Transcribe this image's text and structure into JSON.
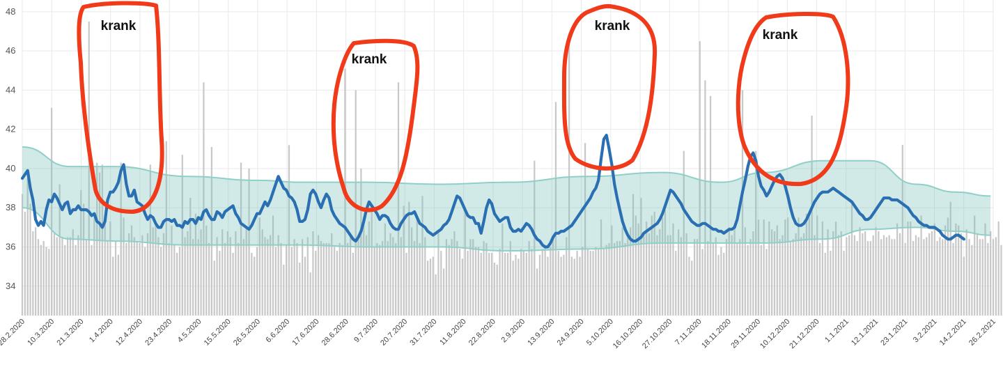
{
  "colors": {
    "bars": "#c8c8c8",
    "band_fill": "#7cc4bd",
    "band_stroke": "#8fcfc8",
    "line": "#2a6fb2",
    "annotation_circle": "#f03a1a",
    "annotation_text": "#111111",
    "grid": "#e9e9e9"
  },
  "chart_data": {
    "type": "bar+line+area",
    "ylim": [
      32.5,
      48.6
    ],
    "yticks": [
      34,
      36,
      38,
      40,
      42,
      44,
      46,
      48
    ],
    "grid": true,
    "xlim_days": [
      0,
      364
    ],
    "xtick_labels": [
      "28.2.2020",
      "10.3.2020",
      "21.3.2020",
      "1.4.2020",
      "12.4.2020",
      "23.4.2020",
      "4.5.2020",
      "15.5.2020",
      "26.5.2020",
      "6.6.2020",
      "17.6.2020",
      "28.6.2020",
      "9.7.2020",
      "20.7.2020",
      "31.7.2020",
      "11.8.2020",
      "22.8.2020",
      "2.9.2020",
      "13.9.2020",
      "24.9.2020",
      "5.10.2020",
      "16.10.2020",
      "27.10.2020",
      "7.11.2020",
      "18.11.2020",
      "29.11.2020",
      "10.12.2020",
      "21.12.2020",
      "1.1.2021",
      "12.1.2021",
      "23.1.2021",
      "3.2.2021",
      "14.2.2021",
      "26.2.2021"
    ],
    "series": [
      {
        "kind": "daily_bars",
        "values": [
          38.7,
          37.8,
          39.2,
          38.2,
          36.8,
          37,
          36.4,
          36.1,
          36.3,
          36,
          35.9,
          36.1,
          36.7,
          36.5,
          37.5,
          36.5,
          36.1,
          36.5,
          36.5,
          36.9,
          36.1,
          36.6,
          38.9,
          38.2,
          36.4,
          36.7,
          36.1,
          37.5,
          36.6,
          39.8,
          36.6,
          37.6,
          36.3,
          37.3,
          35.5,
          36.3,
          35.6,
          36.8,
          37.5,
          36.2,
          36.7,
          37.1,
          36.5,
          36.3,
          36.2,
          36.6,
          36,
          36.7,
          36.3,
          37,
          37.2,
          36.5,
          36,
          36.7,
          36.7,
          36.2,
          37.1,
          36.1,
          35.7,
          36,
          35.9,
          36.5,
          36.8,
          38.5,
          36.4,
          37.7,
          36.4,
          36.9,
          35.9,
          37.1,
          36.2,
          35.6,
          35.3,
          36.5,
          35.8,
          36.9,
          36.2,
          36.8,
          36.5,
          35.7,
          36.8,
          36.2,
          36.1,
          36.4,
          37,
          36.5,
          35.7,
          35.5,
          36,
          37.5,
          36.9,
          36.5,
          36.4,
          36.6,
          37.6,
          36,
          36.6,
          36.2,
          35.1,
          36.1,
          34.9,
          36,
          36.4,
          36.2,
          35.2,
          36.4,
          35.5,
          36.5,
          34.7,
          36.8,
          35.8,
          36.6,
          36.3,
          36.2,
          36.2,
          36.2,
          36.7,
          36,
          35.8,
          36.2,
          36.1,
          36.8,
          36.2,
          36.6,
          35.7,
          36.5,
          36.4,
          36.7,
          37.4,
          36.6,
          37.3,
          37.9,
          36,
          36.2,
          36.1,
          36.3,
          37.2,
          36.3,
          36.7,
          36.5,
          36.2,
          38.9,
          36.5,
          38.1,
          35.7,
          38.3,
          37,
          36.3,
          37.4,
          36.2,
          38.6,
          36.5,
          35.3,
          35.4,
          35.5,
          34.6,
          36.7,
          35.8,
          34.9,
          36.4,
          36.1,
          36.4,
          36.8,
          36.3,
          35.9,
          35.4,
          37.9,
          35.8,
          36.4,
          36.4,
          36,
          36,
          35.7,
          36.3,
          36.2,
          35.7,
          35.7,
          35.2,
          35.1,
          35.9,
          37.2,
          35.7,
          35.7,
          36.3,
          35.3,
          35.6,
          35.4,
          35.9,
          35.8,
          35.7,
          36.3,
          35.9,
          36,
          34.9,
          35.6,
          35.9,
          36.1,
          35.5,
          36,
          36.6,
          35.6,
          35.8,
          35.5,
          35.6,
          36.5,
          36.2,
          35.5,
          35.4,
          35.8,
          35.5,
          36,
          36.3,
          35.9,
          35.8,
          35.8,
          36,
          35.9,
          37.4,
          35.9,
          36.1,
          36.2,
          37.1,
          36.2,
          36.3,
          36.3,
          37,
          36.2,
          36.6,
          37,
          38.7,
          37.6,
          37.2,
          38.5,
          36.7,
          37.3,
          36.7,
          37.6,
          37.8,
          36.6,
          36.9,
          37.5,
          37.9,
          36.6,
          36.6,
          37.2,
          35.8,
          36.9,
          36.5,
          35.8,
          36.7,
          35.5,
          35.3,
          36.4,
          36.4,
          36.3,
          35.9,
          35.7,
          36.3,
          36.6,
          36.2,
          36.5,
          35.6,
          36,
          35.7,
          36.4,
          37,
          36.6,
          37.1,
          36.2,
          36.4,
          36.2,
          37,
          36.1,
          36.4,
          36.8,
          37.3,
          37.4,
          36.1,
          37.4,
          35.9,
          37.3,
          36.9,
          36.8,
          37.1,
          36.4,
          36.6,
          37.4,
          37.5,
          36.3,
          36.4,
          36.7,
          37.5,
          36.5,
          36.7,
          37.7,
          37.6,
          39.1,
          36.6,
          37.6,
          36.2,
          37.3,
          35.7,
          36.9,
          35.8,
          36.8,
          37.3,
          36.6,
          36.8,
          35.8,
          36.5,
          36.6,
          38.3,
          36.6,
          36.3,
          37,
          36.7,
          36.8,
          36.3,
          36.3,
          36.6,
          37,
          36.8,
          36.4,
          36.6,
          36.5,
          36.6,
          36.4,
          36.4,
          37.2,
          36.7,
          36.5,
          36.2,
          37.3,
          37.3,
          36.3,
          36.6,
          36.5,
          37.6,
          36.4,
          36.5,
          36.7,
          36.8,
          37.2,
          36.3,
          36.5,
          36.4,
          37.1,
          37.5,
          38.3,
          36.2,
          37.2,
          37.1,
          36.7,
          35.5,
          36.9,
          36.4,
          36.1,
          37.6,
          36.7,
          36.4,
          36.4,
          37.2,
          36.2,
          36.8,
          36.4,
          36.5,
          37.3,
          36.1,
          36.4,
          36.7,
          36.3,
          37.6,
          36.2,
          36.6,
          35.6,
          36.2,
          35.8,
          35.7,
          36.8,
          36.4,
          36.7,
          36.1,
          35.9,
          36,
          36.3,
          36.4
        ]
      },
      {
        "kind": "spike_bars",
        "values": [
          [
            2,
            39.5
          ],
          [
            11,
            43.1
          ],
          [
            14,
            39.2
          ],
          [
            25,
            47.5
          ],
          [
            28,
            40.3
          ],
          [
            30,
            40.2
          ],
          [
            37,
            40.3
          ],
          [
            48,
            40.2
          ],
          [
            54,
            41.4
          ],
          [
            60,
            40.7
          ],
          [
            68,
            44.4
          ],
          [
            71,
            41.1
          ],
          [
            82,
            40.3
          ],
          [
            85,
            40
          ],
          [
            100,
            41.2
          ],
          [
            121,
            45.1
          ],
          [
            125,
            44
          ],
          [
            127,
            40
          ],
          [
            141,
            44.4
          ],
          [
            192,
            40.4
          ],
          [
            200,
            43.4
          ],
          [
            205,
            46.9
          ],
          [
            211,
            41.3
          ],
          [
            248,
            40.9
          ],
          [
            254,
            46.5
          ],
          [
            256,
            44.5
          ],
          [
            258,
            43.7
          ],
          [
            270,
            44
          ],
          [
            275,
            40.9
          ],
          [
            296,
            42.7
          ],
          [
            330,
            41.2
          ]
        ]
      },
      {
        "kind": "band_upper",
        "x": [
          0,
          18,
          35,
          62,
          88,
          105,
          130,
          156,
          182,
          212,
          240,
          262,
          278,
          300,
          318,
          335,
          350,
          363
        ],
        "values": [
          41.1,
          40.1,
          40.1,
          39.6,
          39.4,
          39.3,
          39.3,
          39.2,
          39.3,
          39.6,
          39.8,
          39.3,
          39.8,
          40.4,
          40.4,
          39.2,
          38.8,
          38.6
        ]
      },
      {
        "kind": "band_lower",
        "x": [
          0,
          18,
          35,
          62,
          88,
          105,
          130,
          156,
          182,
          212,
          240,
          262,
          278,
          300,
          318,
          335,
          350,
          363
        ],
        "values": [
          38,
          36.4,
          36.3,
          36.1,
          36.1,
          36.1,
          36,
          36,
          35.8,
          35.9,
          36.2,
          36.2,
          36.2,
          36.4,
          36.9,
          37,
          36.8,
          36.6
        ]
      },
      {
        "kind": "mean_line",
        "values": [
          39.5,
          39.7,
          39.9,
          39,
          38.4,
          37.4,
          37.1,
          37.3,
          37.1,
          37.9,
          38.4,
          38.3,
          38.7,
          38.5,
          38.2,
          37.9,
          38.2,
          38.3,
          37.7,
          37.9,
          37.9,
          38.1,
          37.9,
          37.9,
          37.9,
          37.8,
          37.6,
          37.7,
          37.3,
          37.2,
          37,
          37.3,
          38.4,
          38.8,
          38.8,
          39,
          39.3,
          39.9,
          40.2,
          39.2,
          38.6,
          38.6,
          38.9,
          38.3,
          38.2,
          38.1,
          37.7,
          37.4,
          37.6,
          37.5,
          37.2,
          37,
          37,
          37.3,
          37.4,
          37.4,
          37.3,
          37.4,
          37.1,
          37.1,
          37,
          37.3,
          37.2,
          37.4,
          37.4,
          37.2,
          37.5,
          37.4,
          37.8,
          37.9,
          37.6,
          37.4,
          37.4,
          37.8,
          37.7,
          37.5,
          37.8,
          37.9,
          38,
          38.1,
          37.7,
          37.5,
          37.2,
          37.1,
          37,
          36.9,
          37.1,
          37.4,
          37.7,
          37.7,
          38,
          38.3,
          38.1,
          38.4,
          38.8,
          39.2,
          39.6,
          39.3,
          39,
          38.9,
          38.6,
          38.5,
          38.3,
          37.9,
          37.3,
          37.3,
          37.4,
          37.9,
          38.7,
          38.9,
          38.7,
          38.3,
          38,
          38.4,
          38.7,
          38.5,
          37.9,
          37.6,
          37.4,
          37.2,
          37.1,
          37,
          36.8,
          36.6,
          36.4,
          36.3,
          36.5,
          36.8,
          37.3,
          37.9,
          38.3,
          38.1,
          37.9,
          37.7,
          37.4,
          37.6,
          37.6,
          37.5,
          37.2,
          37,
          36.9,
          36.9,
          37.2,
          37.4,
          37.6,
          37.7,
          37.7,
          37.8,
          37.5,
          37.2,
          37.1,
          37,
          36.8,
          36.7,
          36.6,
          36.7,
          36.8,
          36.9,
          37.1,
          37.2,
          37.4,
          37.8,
          38.2,
          38.6,
          38.5,
          38.2,
          37.9,
          37.6,
          37.5,
          37.5,
          37.2,
          37.2,
          36.7,
          37.3,
          38,
          38.4,
          38.2,
          37.7,
          37.5,
          37.3,
          37.4,
          37.5,
          37.5,
          37,
          36.8,
          36.8,
          36.9,
          36.8,
          37,
          37.2,
          37.1,
          36.9,
          36.6,
          36.4,
          36.3,
          36.1,
          36,
          36,
          36.2,
          36.5,
          36.7,
          36.7,
          36.8,
          36.8,
          36.9,
          37,
          37.1,
          37.3,
          37.5,
          37.7,
          37.9,
          38.1,
          38.3,
          38.5,
          38.8,
          39,
          39.4,
          40.5,
          41.5,
          41.7,
          41,
          40.2,
          39.2,
          38.5,
          37.9,
          37.3,
          36.9,
          36.6,
          36.4,
          36.3,
          36.3,
          36.4,
          36.5,
          36.7,
          36.8,
          36.9,
          37,
          37.1,
          37.2,
          37.4,
          37.7,
          38.1,
          38.5,
          38.9,
          38.8,
          38.6,
          38.4,
          38.2,
          37.9,
          37.7,
          37.5,
          37.3,
          37.2,
          37.1,
          37.1,
          37.2,
          37.2,
          37.1,
          37,
          36.9,
          36.9,
          36.8,
          36.8,
          36.7,
          36.8,
          36.9,
          36.9,
          37,
          37.4,
          38.1,
          38.8,
          39.4,
          40.1,
          40.6,
          40.8,
          40.4,
          39.6,
          39.1,
          38.9,
          38.6,
          38.8,
          39.1,
          39.4,
          39.6,
          39.7,
          39.5,
          39.1,
          38.6,
          38,
          37.5,
          37.2,
          37.1,
          37.1,
          37.2,
          37.4,
          37.7,
          38,
          38.3,
          38.5,
          38.7,
          38.8,
          38.8,
          38.8,
          38.9,
          39,
          38.9,
          38.8,
          38.7,
          38.6,
          38.5,
          38.4,
          38.3,
          38.1,
          37.9,
          37.7,
          37.6,
          37.4,
          37.4,
          37.5,
          37.7,
          37.9,
          38.1,
          38.3,
          38.5,
          38.5,
          38.5,
          38.4,
          38.4,
          38.4,
          38.3,
          38.2,
          38.1,
          38,
          37.8,
          37.6,
          37.5,
          37.3,
          37.2,
          37.1,
          37.1,
          37,
          37,
          37,
          36.9,
          36.8,
          36.6,
          36.5,
          36.4,
          36.4,
          36.5,
          36.6,
          36.6,
          36.5,
          36.4
        ]
      }
    ],
    "annotations": [
      "krank",
      "krank",
      "krank",
      "krank"
    ]
  }
}
